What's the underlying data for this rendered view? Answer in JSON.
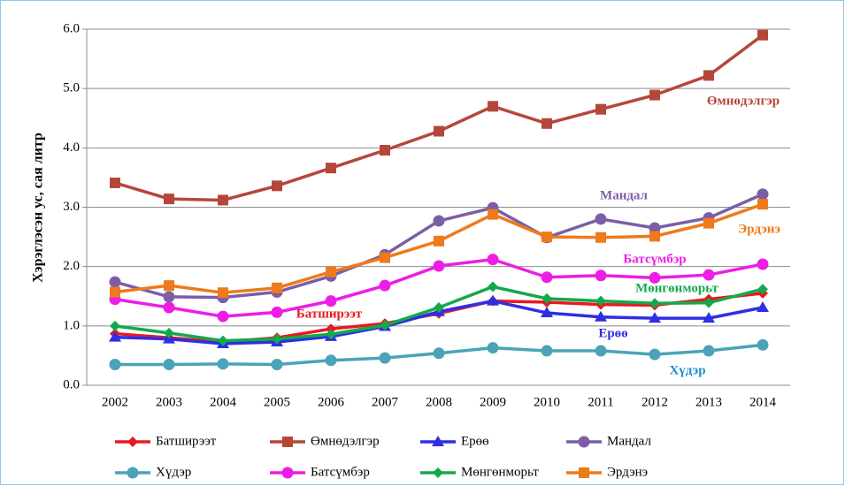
{
  "chart_data": {
    "type": "line",
    "y_label": "Хэрэглэсэн ус, сая литр",
    "categories": [
      "2002",
      "2003",
      "2004",
      "2005",
      "2006",
      "2007",
      "2008",
      "2009",
      "2010",
      "2011",
      "2012",
      "2013",
      "2014"
    ],
    "ylim": [
      0,
      6
    ],
    "yticks": [
      {
        "value": 0,
        "label": "0.0"
      },
      {
        "value": 1,
        "label": "1.0"
      },
      {
        "value": 2,
        "label": "2.0"
      },
      {
        "value": 3,
        "label": "3.0"
      },
      {
        "value": 4,
        "label": "4.0"
      },
      {
        "value": 5,
        "label": "5.0"
      },
      {
        "value": 6,
        "label": "6.0"
      }
    ],
    "grid": true,
    "legend": "bottom",
    "series": [
      {
        "name": "Батширээт",
        "color": "#e8191f",
        "marker": "diamond",
        "values": [
          0.87,
          0.8,
          0.73,
          0.8,
          0.95,
          1.04,
          1.21,
          1.42,
          1.4,
          1.36,
          1.35,
          1.45,
          1.55
        ]
      },
      {
        "name": "Өмнөдэлгэр",
        "color": "#b5473a",
        "marker": "square",
        "values": [
          3.41,
          3.14,
          3.12,
          3.36,
          3.66,
          3.96,
          4.28,
          4.7,
          4.41,
          4.65,
          4.89,
          5.22,
          5.9
        ]
      },
      {
        "name": "Ерөө",
        "color": "#2e2ee6",
        "marker": "triangle",
        "values": [
          0.81,
          0.78,
          0.7,
          0.73,
          0.82,
          0.99,
          1.24,
          1.42,
          1.22,
          1.15,
          1.13,
          1.13,
          1.31
        ]
      },
      {
        "name": "Мандал",
        "color": "#7b5ea7",
        "marker": "circle",
        "values": [
          1.74,
          1.49,
          1.48,
          1.57,
          1.84,
          2.2,
          2.77,
          2.99,
          2.49,
          2.8,
          2.65,
          2.82,
          3.22
        ]
      },
      {
        "name": "Хүдэр",
        "color": "#4aa3b8",
        "marker": "circle",
        "values": [
          0.35,
          0.35,
          0.36,
          0.35,
          0.42,
          0.46,
          0.54,
          0.63,
          0.58,
          0.58,
          0.52,
          0.58,
          0.68
        ]
      },
      {
        "name": "Батсүмбэр",
        "color": "#ee1de6",
        "marker": "circle",
        "values": [
          1.45,
          1.31,
          1.16,
          1.23,
          1.42,
          1.68,
          2.01,
          2.12,
          1.82,
          1.85,
          1.81,
          1.86,
          2.04
        ]
      },
      {
        "name": "Мөнгөнморьт",
        "color": "#13a94a",
        "marker": "diamond",
        "values": [
          1.0,
          0.88,
          0.75,
          0.78,
          0.86,
          1.01,
          1.31,
          1.66,
          1.46,
          1.42,
          1.38,
          1.39,
          1.62
        ]
      },
      {
        "name": "Эрдэнэ",
        "color": "#ee7a1a",
        "marker": "square",
        "values": [
          1.57,
          1.68,
          1.56,
          1.64,
          1.91,
          2.15,
          2.43,
          2.88,
          2.5,
          2.49,
          2.51,
          2.73,
          3.05
        ]
      }
    ],
    "annotations": [
      {
        "text": "Батширээт",
        "color": "#e8191f"
      },
      {
        "text": "Өмнөдэлгэр",
        "color": "#b5473a"
      },
      {
        "text": "Ерөө",
        "color": "#2e2ee6"
      },
      {
        "text": "Мандал",
        "color": "#7b5ea7"
      },
      {
        "text": "Хүдэр",
        "color": "#1e8fc8"
      },
      {
        "text": "Батсүмбэр",
        "color": "#ee1de6"
      },
      {
        "text": "Мөнгөнморьт",
        "color": "#13a94a"
      },
      {
        "text": "Эрдэнэ",
        "color": "#ee7a1a"
      }
    ]
  }
}
